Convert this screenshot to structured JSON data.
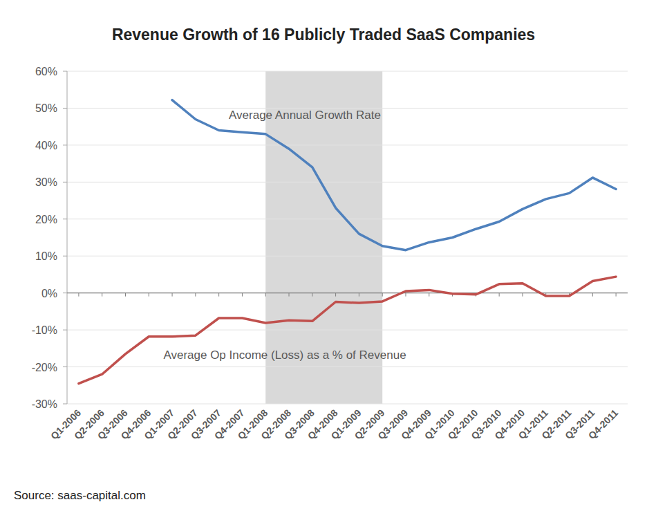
{
  "chart_data": {
    "type": "line",
    "title": "Revenue Growth of 16 Publicly Traded SaaS Companies",
    "source": "Source: saas-capital.com",
    "categories": [
      "Q1-2006",
      "Q2-2006",
      "Q3-2006",
      "Q4-2006",
      "Q1-2007",
      "Q2-2007",
      "Q3-2007",
      "Q4-2007",
      "Q1-2008",
      "Q2-2008",
      "Q3-2008",
      "Q4-2008",
      "Q1-2009",
      "Q2-2009",
      "Q3-2009",
      "Q4-2009",
      "Q1-2010",
      "Q2-2010",
      "Q3-2010",
      "Q4-2010",
      "Q1-2011",
      "Q2-2011",
      "Q3-2011",
      "Q4-2011"
    ],
    "series": [
      {
        "name": "Average Annual Growth Rate",
        "color": "#4f81bd",
        "values": [
          null,
          null,
          null,
          null,
          52.2,
          47,
          44,
          43.5,
          43,
          39,
          34,
          23,
          16,
          12.7,
          11.6,
          13.7,
          15,
          17.3,
          19.3,
          22.7,
          25.4,
          27,
          31.2,
          28.1
        ]
      },
      {
        "name": "Average Op Income (Loss) as a % of Revenue",
        "color": "#c0504d",
        "values": [
          -24.5,
          -22,
          -16.5,
          -11.8,
          -11.8,
          -11.5,
          -6.8,
          -6.8,
          -8.1,
          -7.4,
          -7.6,
          -2.4,
          -2.7,
          -2.3,
          0.5,
          0.8,
          -0.2,
          -0.4,
          2.4,
          2.6,
          -0.8,
          -0.8,
          3.2,
          4.4
        ]
      }
    ],
    "shaded_range": [
      "Q1-2008",
      "Q2-2009"
    ],
    "ylim": [
      -30,
      60
    ],
    "yticks": [
      {
        "value": -30,
        "label": "-30%"
      },
      {
        "value": -20,
        "label": "-20%"
      },
      {
        "value": -10,
        "label": "-10%"
      },
      {
        "value": 0,
        "label": "0%"
      },
      {
        "value": 10,
        "label": "10%"
      },
      {
        "value": 20,
        "label": "20%"
      },
      {
        "value": 30,
        "label": "30%"
      },
      {
        "value": 40,
        "label": "40%"
      },
      {
        "value": 50,
        "label": "50%"
      },
      {
        "value": 60,
        "label": "60%"
      }
    ],
    "grid": true
  }
}
